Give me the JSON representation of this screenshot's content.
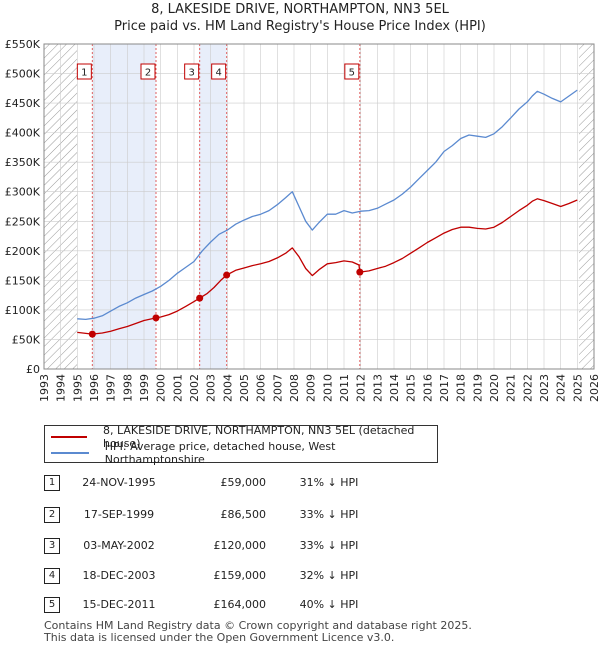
{
  "title_line1": "8, LAKESIDE DRIVE, NORTHAMPTON, NN3 5EL",
  "title_line2": "Price paid vs. HM Land Registry's House Price Index (HPI)",
  "colors": {
    "property": "#c00000",
    "hpi": "#5b8ad0",
    "band": "#e8eefa",
    "grid": "#cccccc",
    "vline": "#e06060"
  },
  "legend": {
    "property": "8, LAKESIDE DRIVE, NORTHAMPTON, NN3 5EL (detached house)",
    "hpi": "HPI: Average price, detached house, West Northamptonshire"
  },
  "transactions": [
    {
      "num": "1",
      "date": "24-NOV-1995",
      "price": "£59,000",
      "hpi": "31% ↓ HPI"
    },
    {
      "num": "2",
      "date": "17-SEP-1999",
      "price": "£86,500",
      "hpi": "33% ↓ HPI"
    },
    {
      "num": "3",
      "date": "03-MAY-2002",
      "price": "£120,000",
      "hpi": "33% ↓ HPI"
    },
    {
      "num": "4",
      "date": "18-DEC-2003",
      "price": "£159,000",
      "hpi": "32% ↓ HPI"
    },
    {
      "num": "5",
      "date": "15-DEC-2011",
      "price": "£164,000",
      "hpi": "40% ↓ HPI"
    }
  ],
  "footer": {
    "line1": "Contains HM Land Registry data © Crown copyright and database right 2025.",
    "line2": "This data is licensed under the Open Government Licence v3.0."
  },
  "chart_data": {
    "type": "line",
    "xlim": [
      1993,
      2026
    ],
    "ylim": [
      0,
      550000
    ],
    "x_ticks": [
      1993,
      1994,
      1995,
      1996,
      1997,
      1998,
      1999,
      2000,
      2001,
      2002,
      2003,
      2004,
      2005,
      2006,
      2007,
      2008,
      2009,
      2010,
      2011,
      2012,
      2013,
      2014,
      2015,
      2016,
      2017,
      2018,
      2019,
      2020,
      2021,
      2022,
      2023,
      2024,
      2025,
      2026
    ],
    "y_ticks": [
      {
        "v": 0,
        "label": "£0"
      },
      {
        "v": 50000,
        "label": "£50K"
      },
      {
        "v": 100000,
        "label": "£100K"
      },
      {
        "v": 150000,
        "label": "£150K"
      },
      {
        "v": 200000,
        "label": "£200K"
      },
      {
        "v": 250000,
        "label": "£250K"
      },
      {
        "v": 300000,
        "label": "£300K"
      },
      {
        "v": 350000,
        "label": "£350K"
      },
      {
        "v": 400000,
        "label": "£400K"
      },
      {
        "v": 450000,
        "label": "£450K"
      },
      {
        "v": 500000,
        "label": "£500K"
      },
      {
        "v": 550000,
        "label": "£550K"
      }
    ],
    "hatched_before": 1995.0,
    "hatched_after": 2025.1,
    "shaded_bands": [
      [
        1995.9,
        1999.7
      ],
      [
        2002.3,
        2003.96
      ]
    ],
    "sales": [
      {
        "label": "1",
        "x": 1995.9,
        "y": 59000
      },
      {
        "label": "2",
        "x": 1999.72,
        "y": 86500
      },
      {
        "label": "3",
        "x": 2002.34,
        "y": 120000
      },
      {
        "label": "4",
        "x": 2003.96,
        "y": 159000
      },
      {
        "label": "5",
        "x": 2011.95,
        "y": 164000
      }
    ],
    "series": [
      {
        "name": "HPI: Average price, detached house, West Northamptonshire",
        "x": [
          1995,
          1995.5,
          1996,
          1996.5,
          1997,
          1997.5,
          1998,
          1998.5,
          1999,
          1999.5,
          2000,
          2000.5,
          2001,
          2001.5,
          2002,
          2002.5,
          2003,
          2003.5,
          2004,
          2004.5,
          2005,
          2005.5,
          2006,
          2006.5,
          2007,
          2007.5,
          2007.9,
          2008.3,
          2008.7,
          2009.1,
          2009.5,
          2010,
          2010.5,
          2011,
          2011.5,
          2012,
          2012.5,
          2013,
          2013.5,
          2014,
          2014.5,
          2015,
          2015.5,
          2016,
          2016.5,
          2017,
          2017.5,
          2018,
          2018.5,
          2019,
          2019.5,
          2020,
          2020.5,
          2021,
          2021.5,
          2022,
          2022.3,
          2022.6,
          2023,
          2023.5,
          2024,
          2024.5,
          2025
        ],
        "y": [
          85000,
          84000,
          86000,
          90000,
          98000,
          106000,
          112000,
          120000,
          126000,
          132000,
          140000,
          150000,
          162000,
          172000,
          182000,
          200000,
          215000,
          228000,
          235000,
          245000,
          252000,
          258000,
          262000,
          268000,
          278000,
          290000,
          300000,
          275000,
          250000,
          235000,
          248000,
          262000,
          262000,
          268000,
          264000,
          267000,
          268000,
          272000,
          279000,
          286000,
          296000,
          308000,
          322000,
          336000,
          350000,
          368000,
          378000,
          390000,
          396000,
          394000,
          392000,
          398000,
          410000,
          425000,
          440000,
          452000,
          462000,
          470000,
          465000,
          458000,
          452000,
          462000,
          472000
        ]
      },
      {
        "name": "8, LAKESIDE DRIVE, NORTHAMPTON, NN3 5EL (detached house)",
        "x": [
          1995,
          1995.9,
          1996.5,
          1997,
          1997.5,
          1998,
          1998.5,
          1999,
          1999.72,
          2000,
          2000.5,
          2001,
          2001.5,
          2002,
          2002.34,
          2002.8,
          2003.2,
          2003.6,
          2003.96,
          2004.5,
          2005,
          2005.5,
          2006,
          2006.5,
          2007,
          2007.5,
          2007.9,
          2008.3,
          2008.7,
          2009.1,
          2009.5,
          2010,
          2010.5,
          2011,
          2011.5,
          2011.9,
          2011.95,
          2012.5,
          2013,
          2013.5,
          2014,
          2014.5,
          2015,
          2015.5,
          2016,
          2016.5,
          2017,
          2017.5,
          2018,
          2018.5,
          2019,
          2019.5,
          2020,
          2020.5,
          2021,
          2021.5,
          2022,
          2022.3,
          2022.6,
          2023,
          2023.5,
          2024,
          2024.5,
          2025
        ],
        "y": [
          62000,
          59000,
          61000,
          64000,
          68000,
          72000,
          77000,
          82000,
          86500,
          88000,
          92000,
          98000,
          106000,
          114000,
          120000,
          128000,
          138000,
          150000,
          159000,
          167000,
          171000,
          175000,
          178000,
          182000,
          188000,
          196000,
          205000,
          190000,
          170000,
          158000,
          168000,
          178000,
          180000,
          183000,
          181000,
          176000,
          164000,
          166000,
          170000,
          174000,
          180000,
          187000,
          196000,
          205000,
          214000,
          222000,
          230000,
          236000,
          240000,
          240000,
          238000,
          237000,
          240000,
          248000,
          258000,
          268000,
          277000,
          284000,
          288000,
          285000,
          280000,
          275000,
          280000,
          286000
        ]
      }
    ]
  }
}
